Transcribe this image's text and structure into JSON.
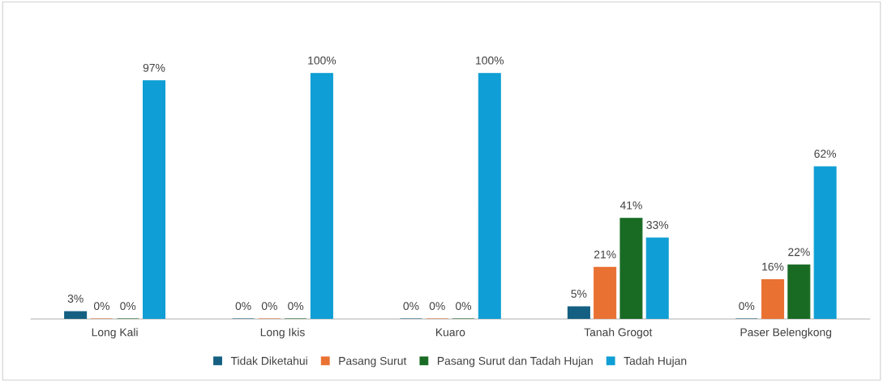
{
  "chart_data": {
    "type": "bar",
    "categories": [
      "Long Kali",
      "Long Ikis",
      "Kuaro",
      "Tanah Grogot",
      "Paser Belengkong"
    ],
    "series": [
      {
        "name": "Tidak Diketahui",
        "color": "#156082",
        "values": [
          3,
          0,
          0,
          5,
          0
        ],
        "value_labels": [
          "3%",
          "0%",
          "0%",
          "5%",
          "0%"
        ]
      },
      {
        "name": "Pasang Surut",
        "color": "#e97132",
        "values": [
          0,
          0,
          0,
          21,
          16
        ],
        "value_labels": [
          "0%",
          "0%",
          "0%",
          "21%",
          "16%"
        ]
      },
      {
        "name": "Pasang Surut dan Tadah Hujan",
        "color": "#196b24",
        "values": [
          0,
          0,
          0,
          41,
          22
        ],
        "value_labels": [
          "0%",
          "0%",
          "0%",
          "41%",
          "22%"
        ]
      },
      {
        "name": "Tadah Hujan",
        "color": "#0f9ed5",
        "values": [
          97,
          100,
          100,
          33,
          62
        ],
        "value_labels": [
          "97%",
          "100%",
          "100%",
          "33%",
          "62%"
        ]
      }
    ],
    "legend": "bottom"
  }
}
